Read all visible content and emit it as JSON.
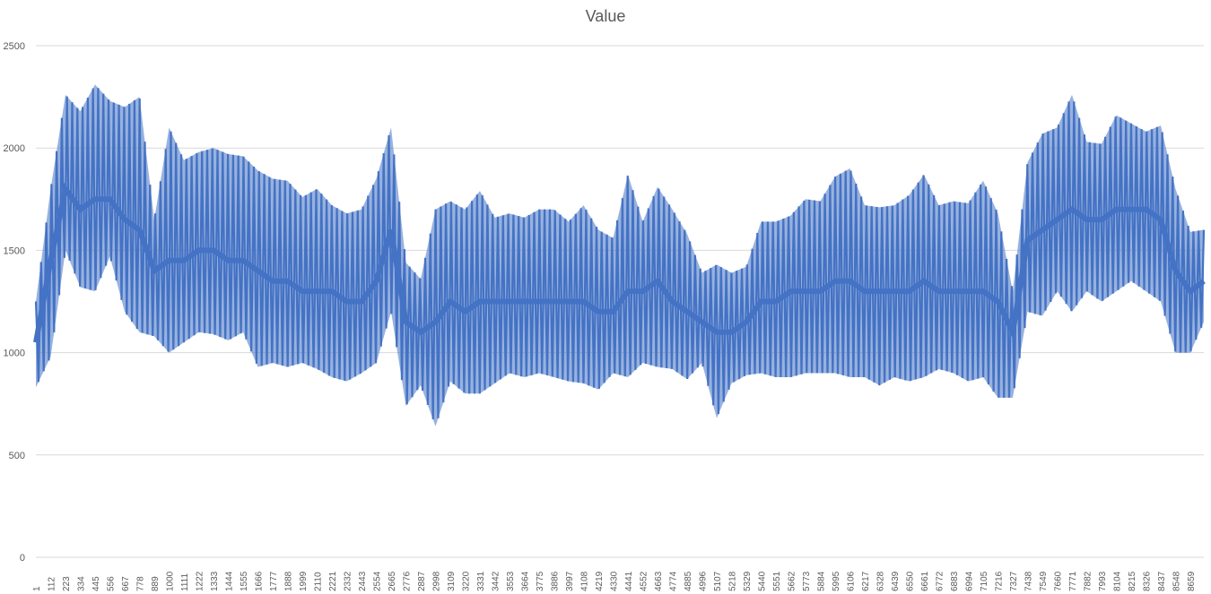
{
  "chart_data": {
    "type": "line",
    "title": "Value",
    "xlabel": "",
    "ylabel": "",
    "ylim": [
      0,
      2500
    ],
    "xlim": [
      1,
      8760
    ],
    "grid": true,
    "legend": "none",
    "y_ticks": [
      0,
      500,
      1000,
      1500,
      2000,
      2500
    ],
    "x_tick_labels": [
      "1",
      "112",
      "223",
      "334",
      "445",
      "556",
      "667",
      "778",
      "889",
      "1000",
      "1111",
      "1222",
      "1333",
      "1444",
      "1555",
      "1666",
      "1777",
      "1888",
      "1999",
      "2110",
      "2221",
      "2332",
      "2443",
      "2554",
      "2665",
      "2776",
      "2887",
      "2998",
      "3109",
      "3220",
      "3331",
      "3442",
      "3553",
      "3664",
      "3775",
      "3886",
      "3997",
      "4108",
      "4219",
      "4330",
      "4441",
      "4552",
      "4663",
      "4774",
      "4885",
      "4996",
      "5107",
      "5218",
      "5329",
      "5440",
      "5551",
      "5662",
      "5773",
      "5884",
      "5995",
      "6106",
      "6217",
      "6328",
      "6439",
      "6550",
      "6661",
      "6772",
      "6883",
      "6994",
      "7105",
      "7216",
      "7327",
      "7438",
      "7549",
      "7660",
      "7771",
      "7882",
      "7993",
      "8104",
      "8215",
      "8326",
      "8437",
      "8548",
      "8659"
    ],
    "series_color": "#4472c4",
    "series": [
      {
        "x": [
          1,
          112,
          223,
          334,
          445,
          556,
          667,
          778,
          889,
          1000,
          1111,
          1222,
          1333,
          1444,
          1555,
          1666,
          1777,
          1888,
          1999,
          2110,
          2221,
          2332,
          2443,
          2554,
          2665,
          2776,
          2887,
          2998,
          3109,
          3220,
          3331,
          3442,
          3553,
          3664,
          3775,
          3886,
          3997,
          4108,
          4219,
          4330,
          4441,
          4552,
          4663,
          4774,
          4885,
          4996,
          5107,
          5218,
          5329,
          5440,
          5551,
          5662,
          5773,
          5884,
          5995,
          6106,
          6217,
          6328,
          6439,
          6550,
          6661,
          6772,
          6883,
          6994,
          7105,
          7216,
          7327,
          7438,
          7549,
          7660,
          7771,
          7882,
          7993,
          8104,
          8215,
          8326,
          8437,
          8548,
          8659,
          8760
        ],
        "high": [
          1250,
          1800,
          2260,
          2180,
          2310,
          2230,
          2200,
          2250,
          1650,
          2100,
          1940,
          1980,
          2000,
          1970,
          1960,
          1890,
          1850,
          1840,
          1760,
          1800,
          1720,
          1680,
          1700,
          1850,
          2100,
          1440,
          1360,
          1700,
          1740,
          1700,
          1790,
          1660,
          1680,
          1660,
          1700,
          1700,
          1640,
          1720,
          1600,
          1560,
          1870,
          1640,
          1810,
          1700,
          1580,
          1390,
          1430,
          1390,
          1420,
          1640,
          1640,
          1670,
          1750,
          1740,
          1860,
          1900,
          1720,
          1710,
          1720,
          1770,
          1870,
          1720,
          1740,
          1730,
          1840,
          1680,
          1300,
          1930,
          2070,
          2100,
          2260,
          2030,
          2020,
          2160,
          2120,
          2080,
          2110,
          1800,
          1590,
          1600
        ],
        "low": [
          830,
          980,
          1500,
          1320,
          1300,
          1470,
          1200,
          1100,
          1080,
          1000,
          1050,
          1100,
          1090,
          1060,
          1100,
          930,
          950,
          930,
          950,
          920,
          880,
          860,
          900,
          950,
          1200,
          740,
          840,
          640,
          860,
          800,
          800,
          850,
          900,
          880,
          900,
          880,
          860,
          850,
          820,
          900,
          880,
          950,
          930,
          920,
          870,
          950,
          680,
          850,
          890,
          900,
          880,
          880,
          900,
          900,
          900,
          880,
          880,
          840,
          880,
          860,
          880,
          920,
          900,
          860,
          880,
          780,
          780,
          1200,
          1180,
          1300,
          1200,
          1300,
          1250,
          1300,
          1350,
          1300,
          1250,
          1000,
          1000,
          1150
        ],
        "mid": [
          1050,
          1450,
          1800,
          1700,
          1750,
          1750,
          1650,
          1600,
          1400,
          1450,
          1450,
          1500,
          1500,
          1450,
          1450,
          1400,
          1350,
          1350,
          1300,
          1300,
          1300,
          1250,
          1250,
          1350,
          1600,
          1150,
          1100,
          1150,
          1250,
          1200,
          1250,
          1250,
          1250,
          1250,
          1250,
          1250,
          1250,
          1250,
          1200,
          1200,
          1300,
          1300,
          1350,
          1250,
          1200,
          1150,
          1100,
          1100,
          1150,
          1250,
          1250,
          1300,
          1300,
          1300,
          1350,
          1350,
          1300,
          1300,
          1300,
          1300,
          1350,
          1300,
          1300,
          1300,
          1300,
          1250,
          1100,
          1550,
          1600,
          1650,
          1700,
          1650,
          1650,
          1700,
          1700,
          1700,
          1650,
          1400,
          1300,
          1350
        ]
      }
    ]
  }
}
